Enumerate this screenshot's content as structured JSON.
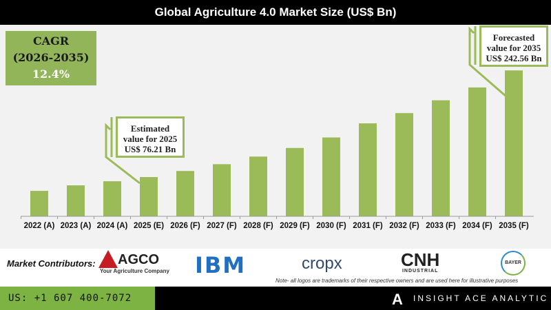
{
  "title": "Global Agriculture 4.0 Market Size (US$ Bn)",
  "cagr": {
    "label": "CAGR",
    "period": "(2026-2035)",
    "value": "12.4%"
  },
  "callouts": {
    "estimated": [
      "Estimated",
      "value for 2025",
      "US$ 76.21 Bn"
    ],
    "forecasted": [
      "Forecasted",
      "value for 2035",
      "US$ 242.56 Bn"
    ]
  },
  "chart_data": {
    "type": "bar",
    "title": "Global Agriculture 4.0 Market Size (US$ Bn)",
    "categories": [
      "2022 (A)",
      "2023 (A)",
      "2024 (A)",
      "2025 (E)",
      "2026 (F)",
      "2027 (F)",
      "2028 (F)",
      "2029 (F)",
      "2030 (F)",
      "2031 (F)",
      "2032 (F)",
      "2033 (F)",
      "2034 (F)",
      "2035 (F)"
    ],
    "values": [
      54.7,
      63.3,
      69.7,
      76.21,
      85.7,
      96.3,
      108.2,
      121.6,
      138.0,
      160.0,
      176.0,
      196.0,
      216.0,
      242.56
    ],
    "ylim": [
      15,
      260
    ],
    "grid": false,
    "bar_color": "#9bbb59"
  },
  "contributors": {
    "label": "Market Contributors:",
    "logos": [
      "AGCO",
      "Your Agriculture Company",
      "IBM",
      "cropx",
      "CNH",
      "INDUSTRIAL",
      "BAYER"
    ],
    "note": "Note- all logos are trademarks of their respective owners and are used here for illustrative purposes"
  },
  "footer": {
    "phone": "US: +1 607 400-7072",
    "brand": "INSIGHT ACE ANALYTIC"
  }
}
